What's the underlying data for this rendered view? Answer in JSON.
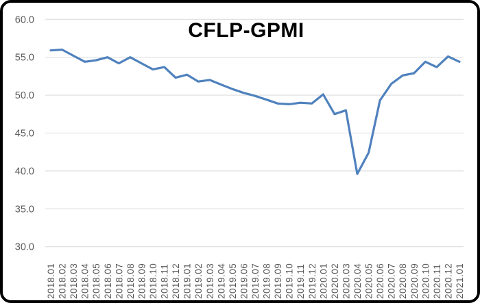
{
  "frame": {
    "border_color": "#000000",
    "background": "#ffffff"
  },
  "chart_data": {
    "type": "line",
    "title": "CFLP-GPMI",
    "title_color": "#000000",
    "legend": "none",
    "grid": "horizontal-only",
    "gridline_color": "#d9d9d9",
    "axis_label_color": "#595959",
    "ylim": [
      30.0,
      60.0
    ],
    "ytick_step": 5.0,
    "yticks": [
      "60.0",
      "55.0",
      "50.0",
      "45.0",
      "40.0",
      "35.0",
      "30.0"
    ],
    "categories": [
      "2018.01",
      "2018.02",
      "2018.03",
      "2018.04",
      "2018.05",
      "2018.06",
      "2018.07",
      "2018.08",
      "2018.09",
      "2018.10",
      "2018.11",
      "2018.12",
      "2019.01",
      "2019.02",
      "2019.03",
      "2019.04",
      "2019.05",
      "2019.06",
      "2019.07",
      "2019.08",
      "2019.09",
      "2019.10",
      "2019.11",
      "2019.12",
      "2020.01",
      "2020.02",
      "2020.03",
      "2020.04",
      "2020.05",
      "2020.06",
      "2020.07",
      "2020.08",
      "2020.09",
      "2020.10",
      "2020.11",
      "2020.12",
      "2021.01"
    ],
    "series": [
      {
        "name": "CFLP-GPMI",
        "color": "#4F81BD",
        "values": [
          55.9,
          56.0,
          55.2,
          54.4,
          54.6,
          55.0,
          54.2,
          55.0,
          54.2,
          53.4,
          53.7,
          52.3,
          52.7,
          51.8,
          52.0,
          51.4,
          50.8,
          50.3,
          49.9,
          49.4,
          48.9,
          48.8,
          49.0,
          48.9,
          50.1,
          47.5,
          48.0,
          39.6,
          42.4,
          49.3,
          51.5,
          52.6,
          52.9,
          54.4,
          53.7,
          55.1,
          54.4
        ]
      }
    ]
  }
}
